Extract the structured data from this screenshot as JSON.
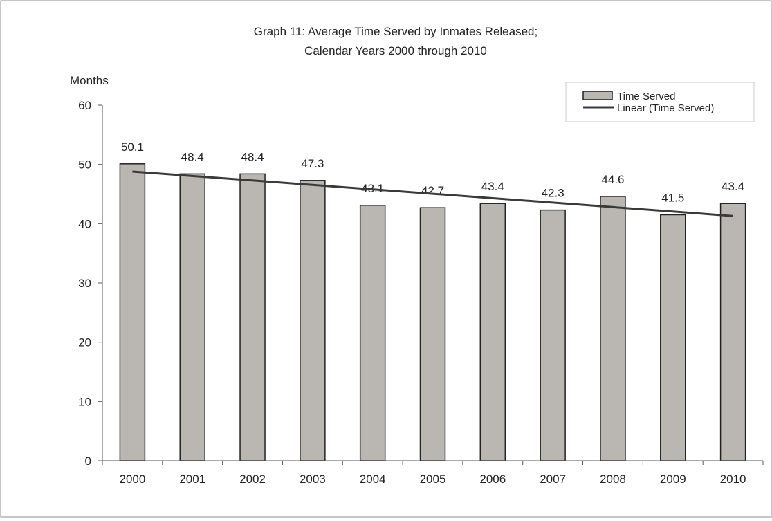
{
  "chart_data": {
    "type": "bar",
    "title_line1": "Graph 11: Average Time Served by Inmates Released;",
    "title_line2": "Calendar Years 2000 through 2010",
    "ylabel": "Months",
    "xlabel": "",
    "ylim": [
      0,
      60
    ],
    "y_ticks": [
      "0",
      "10",
      "20",
      "30",
      "40",
      "50",
      "60"
    ],
    "categories": [
      "2000",
      "2001",
      "2002",
      "2003",
      "2004",
      "2005",
      "2006",
      "2007",
      "2008",
      "2009",
      "2010"
    ],
    "series": [
      {
        "name": "Time Served",
        "values": [
          50.1,
          48.4,
          48.4,
          47.3,
          43.1,
          42.7,
          43.4,
          42.3,
          44.6,
          41.5,
          43.4
        ],
        "labels": [
          "50.1",
          "48.4",
          "48.4",
          "47.3",
          "43.1",
          "42.7",
          "43.4",
          "42.3",
          "44.6",
          "41.5",
          "43.4"
        ],
        "color": "#bab6b1"
      }
    ],
    "trendline": {
      "name": "Linear (Time Served)",
      "start": 48.8,
      "end": 41.3,
      "color": "#3a3a38"
    },
    "legend": {
      "position": "top-right",
      "items": [
        "Time Served",
        "Linear (Time Served)"
      ]
    },
    "grid": false
  }
}
